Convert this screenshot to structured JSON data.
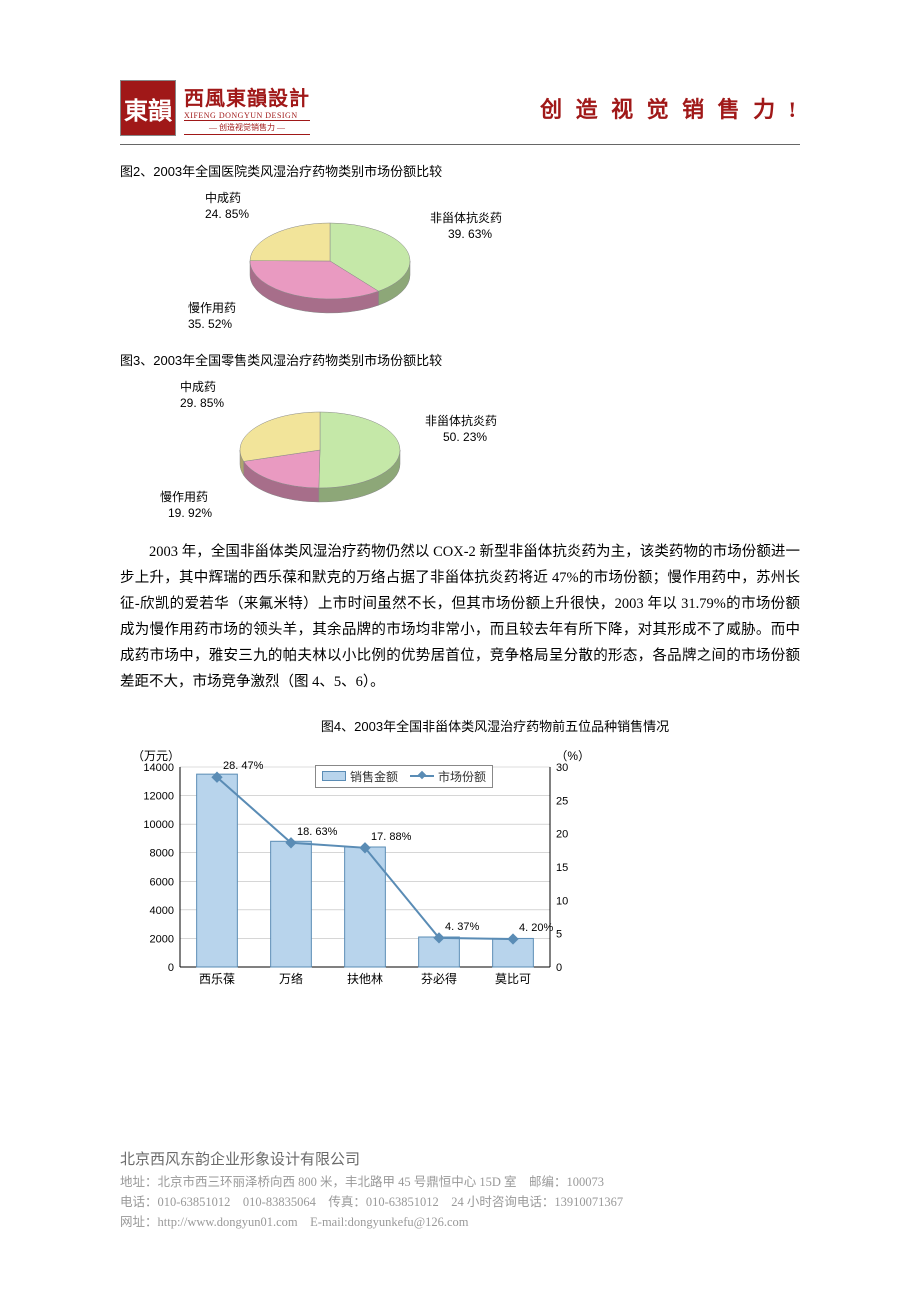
{
  "header": {
    "logo_seal": "東韻",
    "logo_cn": "西風東韻設計",
    "logo_en": "XIFENG DONGYUN DESIGN",
    "logo_sub": "— 创造视觉销售力 —",
    "slogan": "创 造 视 觉 销 售 力 !"
  },
  "fig2": {
    "title": "图2、2003年全国医院类风湿治疗药物类别市场份额比较",
    "slices": [
      {
        "name": "非甾体抗炎药",
        "value": 39.63,
        "color": "#c5e8a8"
      },
      {
        "name": "慢作用药",
        "value": 35.52,
        "color": "#e99ac1"
      },
      {
        "name": "中成药",
        "value": 24.85,
        "color": "#f2e49a"
      }
    ],
    "label_a_name": "中成药",
    "label_a_pct": "24. 85%",
    "label_b_name": "非甾体抗炎药",
    "label_b_pct": "39. 63%",
    "label_c_name": "慢作用药",
    "label_c_pct": "35. 52%"
  },
  "fig3": {
    "title": "图3、2003年全国零售类风湿治疗药物类别市场份额比较",
    "slices": [
      {
        "name": "非甾体抗炎药",
        "value": 50.23,
        "color": "#c5e8a8"
      },
      {
        "name": "慢作用药",
        "value": 19.92,
        "color": "#e99ac1"
      },
      {
        "name": "中成药",
        "value": 29.85,
        "color": "#f2e49a"
      }
    ],
    "label_a_name": "中成药",
    "label_a_pct": "29. 85%",
    "label_b_name": "非甾体抗炎药",
    "label_b_pct": "50. 23%",
    "label_c_name": "慢作用药",
    "label_c_pct": "19. 92%"
  },
  "paragraph": "2003 年，全国非甾体类风湿治疗药物仍然以 COX-2 新型非甾体抗炎药为主，该类药物的市场份额进一步上升，其中辉瑞的西乐葆和默克的万络占据了非甾体抗炎药将近 47%的市场份额；慢作用药中，苏州长征-欣凯的爱若华（来氟米特）上市时间虽然不长，但其市场份额上升很快，2003 年以 31.79%的市场份额成为慢作用药市场的领头羊，其余品牌的市场均非常小，而且较去年有所下降，对其形成不了威胁。而中成药市场中，雅安三九的帕夫林以小比例的优势居首位，竞争格局呈分散的形态，各品牌之间的市场份额差距不大，市场竞争激烈（图 4、5、6）。",
  "fig4": {
    "title": "图4、2003年全国非甾体类风湿治疗药物前五位品种销售情况",
    "y_left_unit": "（万元）",
    "y_right_unit": "（%）",
    "legend_bar": "销售金额",
    "legend_line": "市场份额",
    "y_left": {
      "min": 0,
      "max": 14000,
      "step": 2000
    },
    "y_right": {
      "min": 0,
      "max": 30,
      "step": 5
    },
    "bar_color": "#b8d4ec",
    "bar_border": "#5a8cb5",
    "line_color": "#5a8cb5",
    "grid_color": "#bdbdbd",
    "categories": [
      "西乐葆",
      "万络",
      "扶他林",
      "芬必得",
      "莫比可"
    ],
    "sales": [
      13500,
      8800,
      8400,
      2100,
      2000
    ],
    "share": [
      28.47,
      18.63,
      17.88,
      4.37,
      4.2
    ],
    "share_labels": [
      "28. 47%",
      "18. 63%",
      "17. 88%",
      "4. 37%",
      "4. 20%"
    ]
  },
  "footer": {
    "company": "北京西风东韵企业形象设计有限公司",
    "addr": "地址：北京市西三环丽泽桥向西 800 米，丰北路甲 45 号鼎恒中心 15D 室　邮编：100073",
    "tel": "电话：010-63851012　010-83835064　传真：010-63851012　24 小时咨询电话：13910071367",
    "web": "网址：http://www.dongyun01.com　E-mail:dongyunkefu@126.com"
  }
}
